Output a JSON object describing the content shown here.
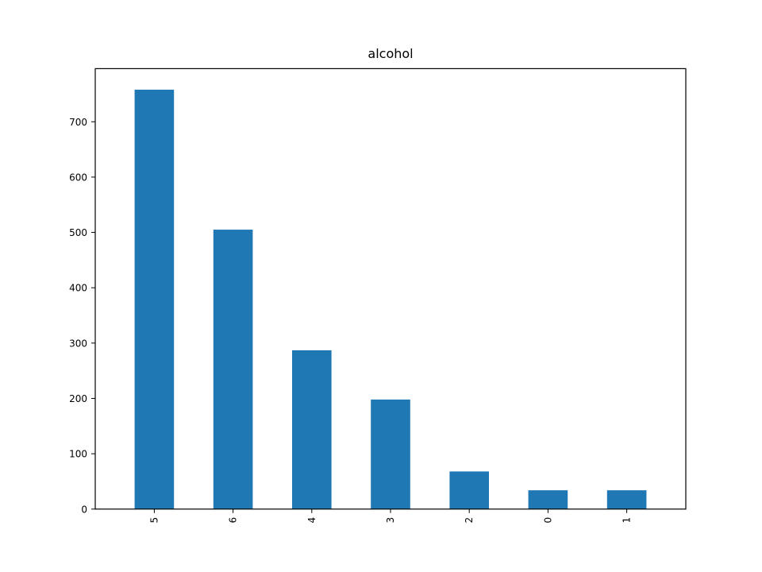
{
  "chart_data": {
    "type": "bar",
    "title": "alcohol",
    "xlabel": "",
    "ylabel": "",
    "categories": [
      "5",
      "6",
      "4",
      "3",
      "2",
      "0",
      "1"
    ],
    "values": [
      758,
      505,
      287,
      198,
      68,
      34,
      34
    ],
    "ylim": [
      0,
      796
    ],
    "yticks": [
      0,
      100,
      200,
      300,
      400,
      500,
      600,
      700
    ],
    "x_tick_rotation": 90,
    "grid": false,
    "legend": "none",
    "bar_color": "#1f77b4"
  }
}
